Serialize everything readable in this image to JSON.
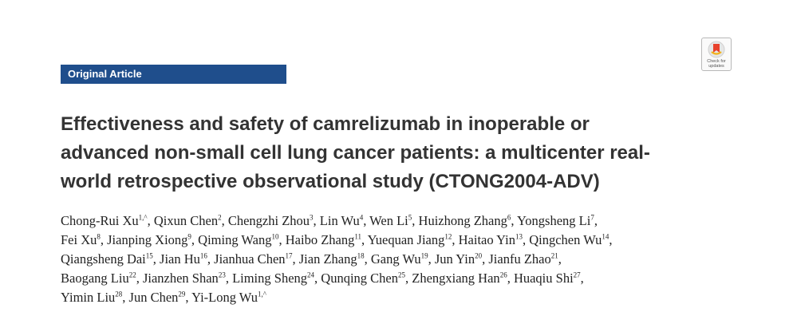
{
  "article_type": "Original Article",
  "check_updates": {
    "line1": "Check for",
    "line2": "updates"
  },
  "title_lines": [
    "Effectiveness and safety of camrelizumab in inoperable or",
    "advanced non-small cell lung cancer patients: a multicenter real-",
    "world retrospective observational study (CTONG2004-ADV)"
  ],
  "author_lines": [
    [
      {
        "name": "Chong-Rui Xu",
        "sup": "1,^",
        "sep": ", "
      },
      {
        "name": "Qixun Chen",
        "sup": "2",
        "sep": ", "
      },
      {
        "name": "Chengzhi Zhou",
        "sup": "3",
        "sep": ", "
      },
      {
        "name": "Lin Wu",
        "sup": "4",
        "sep": ", "
      },
      {
        "name": "Wen Li",
        "sup": "5",
        "sep": ", "
      },
      {
        "name": "Huizhong Zhang",
        "sup": "6",
        "sep": ", "
      },
      {
        "name": "Yongsheng Li",
        "sup": "7",
        "sep": ","
      }
    ],
    [
      {
        "name": "Fei Xu",
        "sup": "8",
        "sep": ", "
      },
      {
        "name": "Jianping Xiong",
        "sup": "9",
        "sep": ", "
      },
      {
        "name": "Qiming Wang",
        "sup": "10",
        "sep": ", "
      },
      {
        "name": "Haibo Zhang",
        "sup": "11",
        "sep": ", "
      },
      {
        "name": "Yuequan Jiang",
        "sup": "12",
        "sep": ", "
      },
      {
        "name": "Haitao Yin",
        "sup": "13",
        "sep": ", "
      },
      {
        "name": "Qingchen Wu",
        "sup": "14",
        "sep": ","
      }
    ],
    [
      {
        "name": "Qiangsheng Dai",
        "sup": "15",
        "sep": ", "
      },
      {
        "name": "Jian Hu",
        "sup": "16",
        "sep": ", "
      },
      {
        "name": "Jianhua Chen",
        "sup": "17",
        "sep": ", "
      },
      {
        "name": "Jian Zhang",
        "sup": "18",
        "sep": ", "
      },
      {
        "name": "Gang Wu",
        "sup": "19",
        "sep": ", "
      },
      {
        "name": "Jun Yin",
        "sup": "20",
        "sep": ", "
      },
      {
        "name": "Jianfu Zhao",
        "sup": "21",
        "sep": ","
      }
    ],
    [
      {
        "name": "Baogang Liu",
        "sup": "22",
        "sep": ", "
      },
      {
        "name": "Jianzhen Shan",
        "sup": "23",
        "sep": ", "
      },
      {
        "name": "Liming Sheng",
        "sup": "24",
        "sep": ", "
      },
      {
        "name": "Qunqing Chen",
        "sup": "25",
        "sep": ", "
      },
      {
        "name": "Zhengxiang Han",
        "sup": "26",
        "sep": ", "
      },
      {
        "name": "Huaqiu Shi",
        "sup": "27",
        "sep": ","
      }
    ],
    [
      {
        "name": "Yimin Liu",
        "sup": "28",
        "sep": ", "
      },
      {
        "name": "Jun Chen",
        "sup": "29",
        "sep": ", "
      },
      {
        "name": "Yi-Long Wu",
        "sup": "1,^",
        "sep": ""
      }
    ]
  ]
}
